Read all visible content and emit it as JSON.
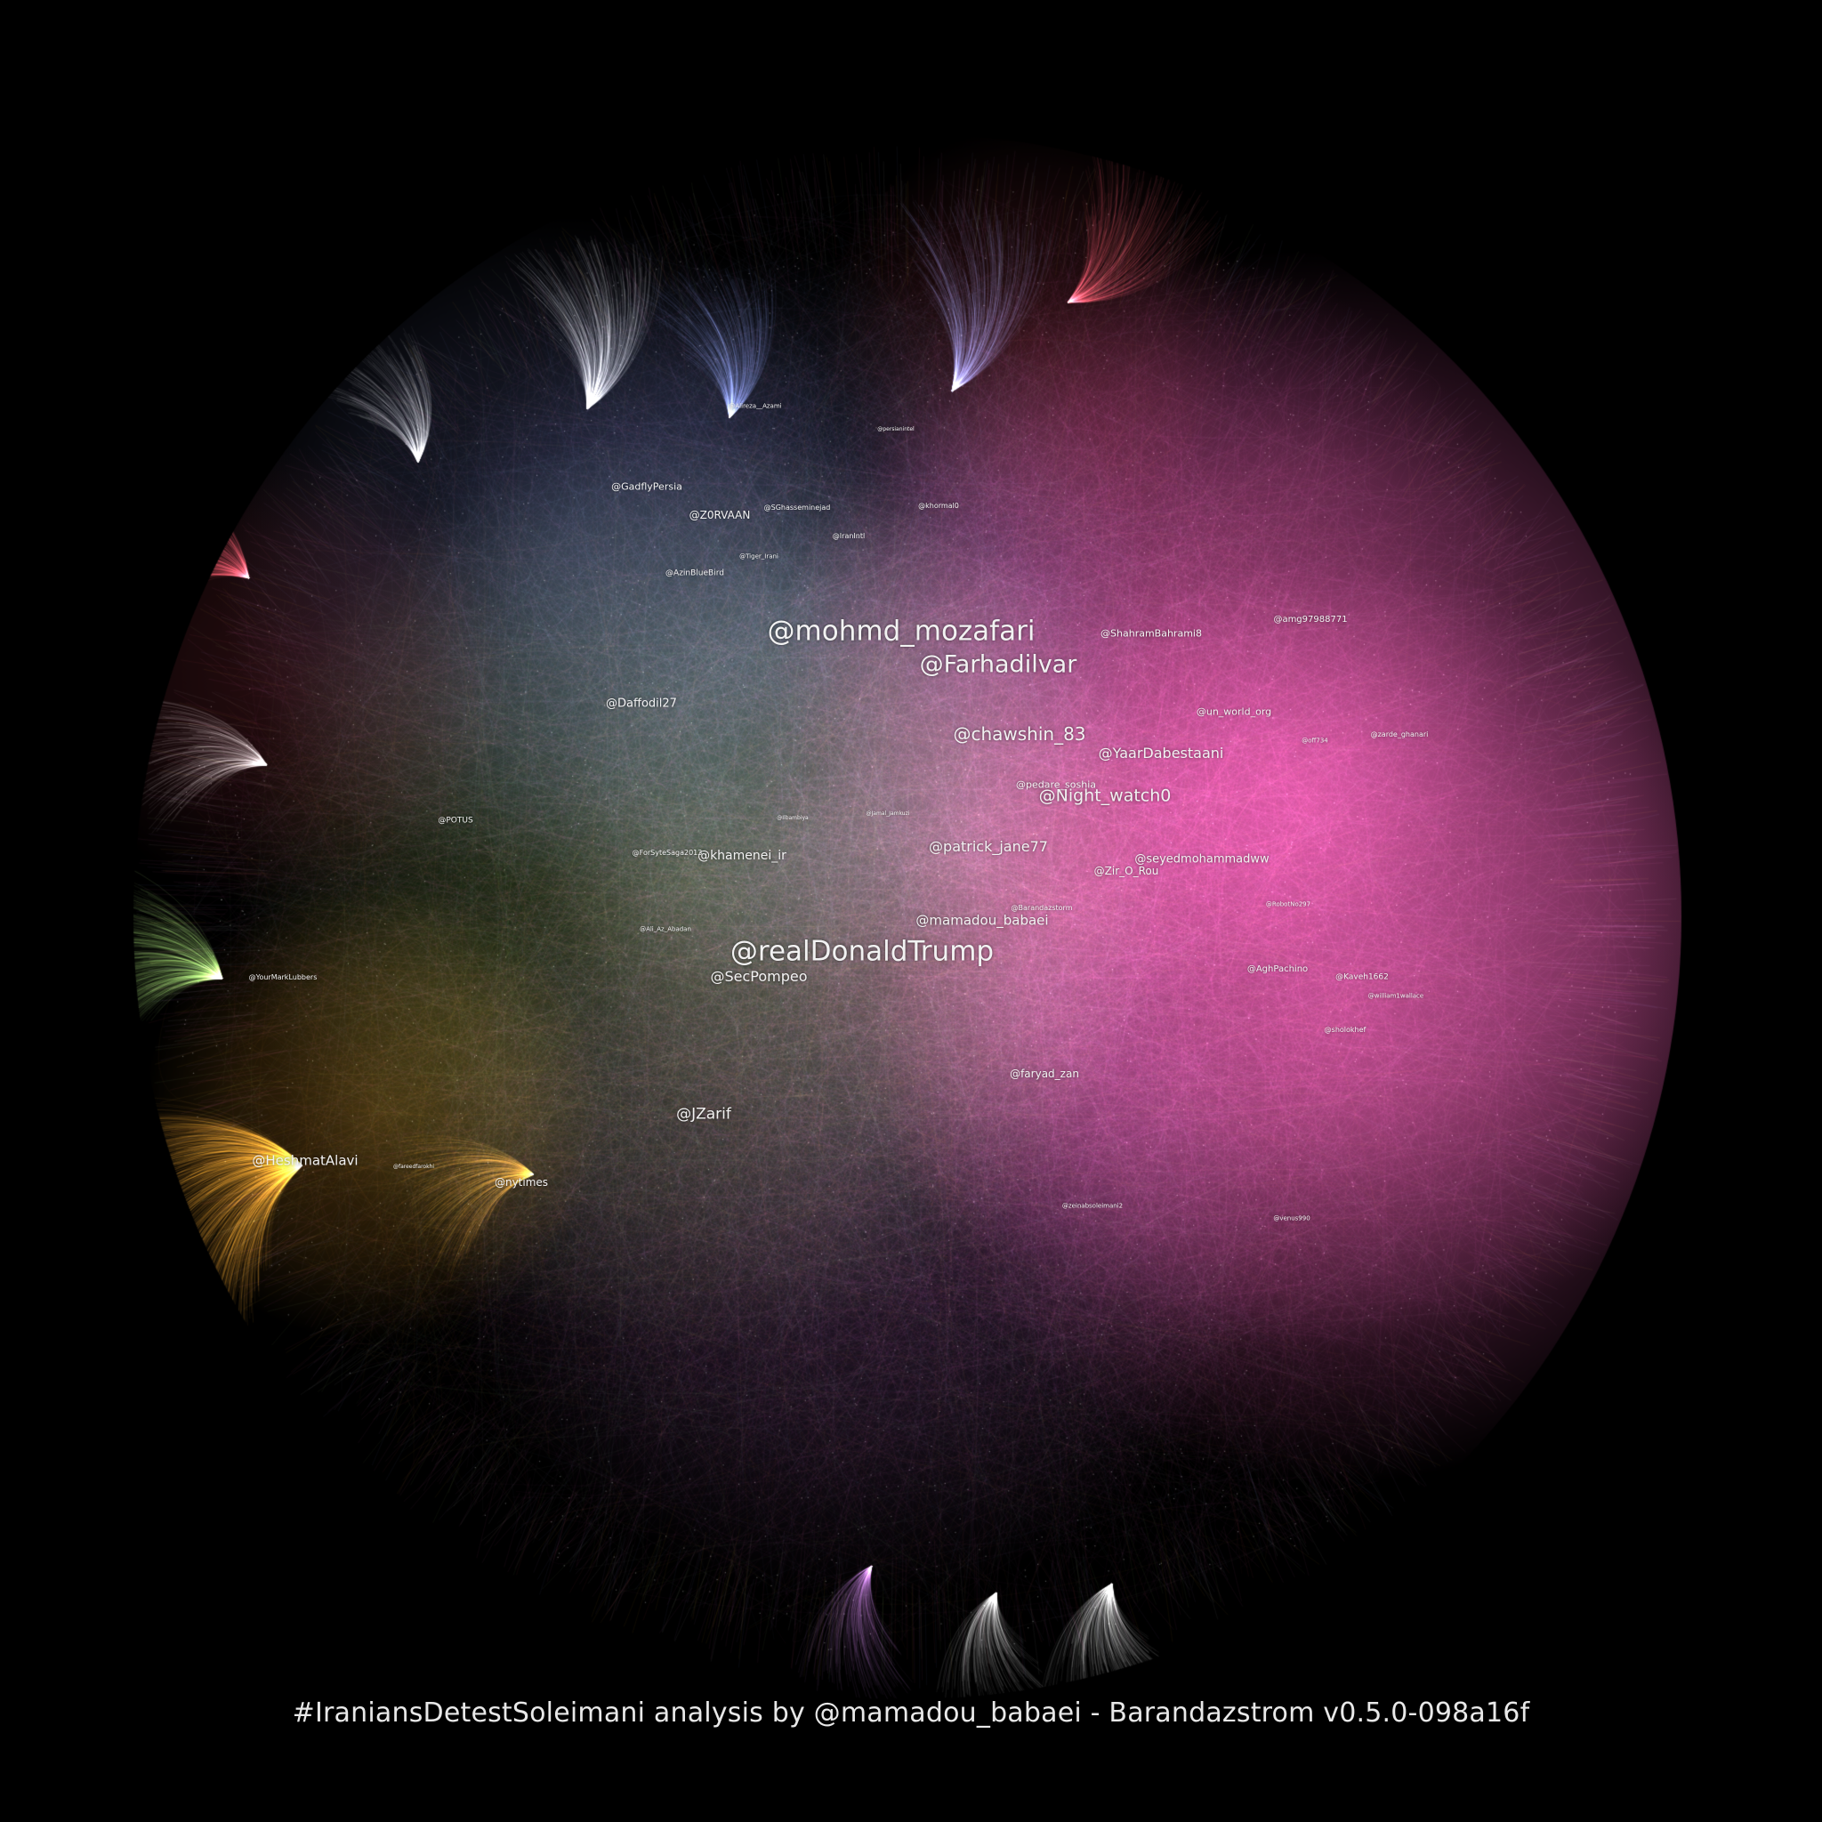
{
  "graph": {
    "hashtag_caption": "#IraniansDetestSoleimani analysis by @mamadou_babaei - Barandazstrom v0.5.0-098a16f",
    "background_color": "#000000",
    "cluster_colors": {
      "pink": "#e05aa8",
      "blue": "#7f8ed8",
      "green": "#9ad06a",
      "orange": "#f0a22a",
      "red": "#d84a5a",
      "purple": "#b070c8",
      "white": "#e0e0e0"
    },
    "labels": {
      "mohmd_mozafari": "@mohmd_mozafari",
      "farhadilvar": "@Farhadilvar",
      "chawshin_83": "@chawshin_83",
      "yaardabestaani": "@YaarDabestaani",
      "pedare_soshia": "@pedare_soshia",
      "night_watch0": "@Night_watch0",
      "patrick_jane77": "@patrick_jane77",
      "seyedmohammadww": "@seyedmohammadww",
      "zir_o_rou": "@Zir_O_Rou",
      "mamadou_babaei": "@mamadou_babaei",
      "realdonaldtrump": "@realDonaldTrump",
      "secpompeo": "@SecPompeo",
      "khamenei_ir": "@khamenei_ir",
      "daffodil27": "@Daffodil27",
      "gadflypersia": "@GadflyPersia",
      "z0rvaan": "@Z0RVAAN",
      "jzarif": "@JZarif",
      "heshmatalavi": "@HeshmatAlavi",
      "nytimes": "@nytimes",
      "faryad_zan": "@faryad_zan",
      "shahrambahrami8": "@ShahramBahrami8",
      "amg97988771": "@amg97988771",
      "un_world_org": "@un_world_org",
      "potus": "@POTUS",
      "yourmarklubbers": "@YourMarkLubbers",
      "forsytesaga2013": "@ForSyteSaga2013",
      "aghpachino": "@AghPachino",
      "kaveh1662": "@Kaveh1662",
      "zarde_ghanari": "@zarde_ghanari",
      "sholokhef": "@sholokhef",
      "azinbluebird": "@AzinBlueBird",
      "sghasseminejad": "@SGhasseminejad",
      "khormal0": "@khormal0",
      "iranintl": "@IranIntl",
      "alireza_azami": "@Alireza__Azami",
      "tiger_irani": "@Tiger_Irani",
      "barandazstorm": "@Barandazstorm",
      "ali_az_abadan": "@Ali_Az_Abadan",
      "robotno297": "@RobotNo297",
      "william1wallace": "@william1wallace",
      "zeinabsoleimani2": "@zeinabsoleimani2",
      "venus990": "@venus990",
      "off734": "@off734",
      "fareedfarokhi": "@fareedfarokhi",
      "persianintel": "@persianintel",
      "jamal_jamkuzi": "@Jamal_Jamkuzi",
      "ilbambiya": "@Ilbambiya"
    }
  }
}
